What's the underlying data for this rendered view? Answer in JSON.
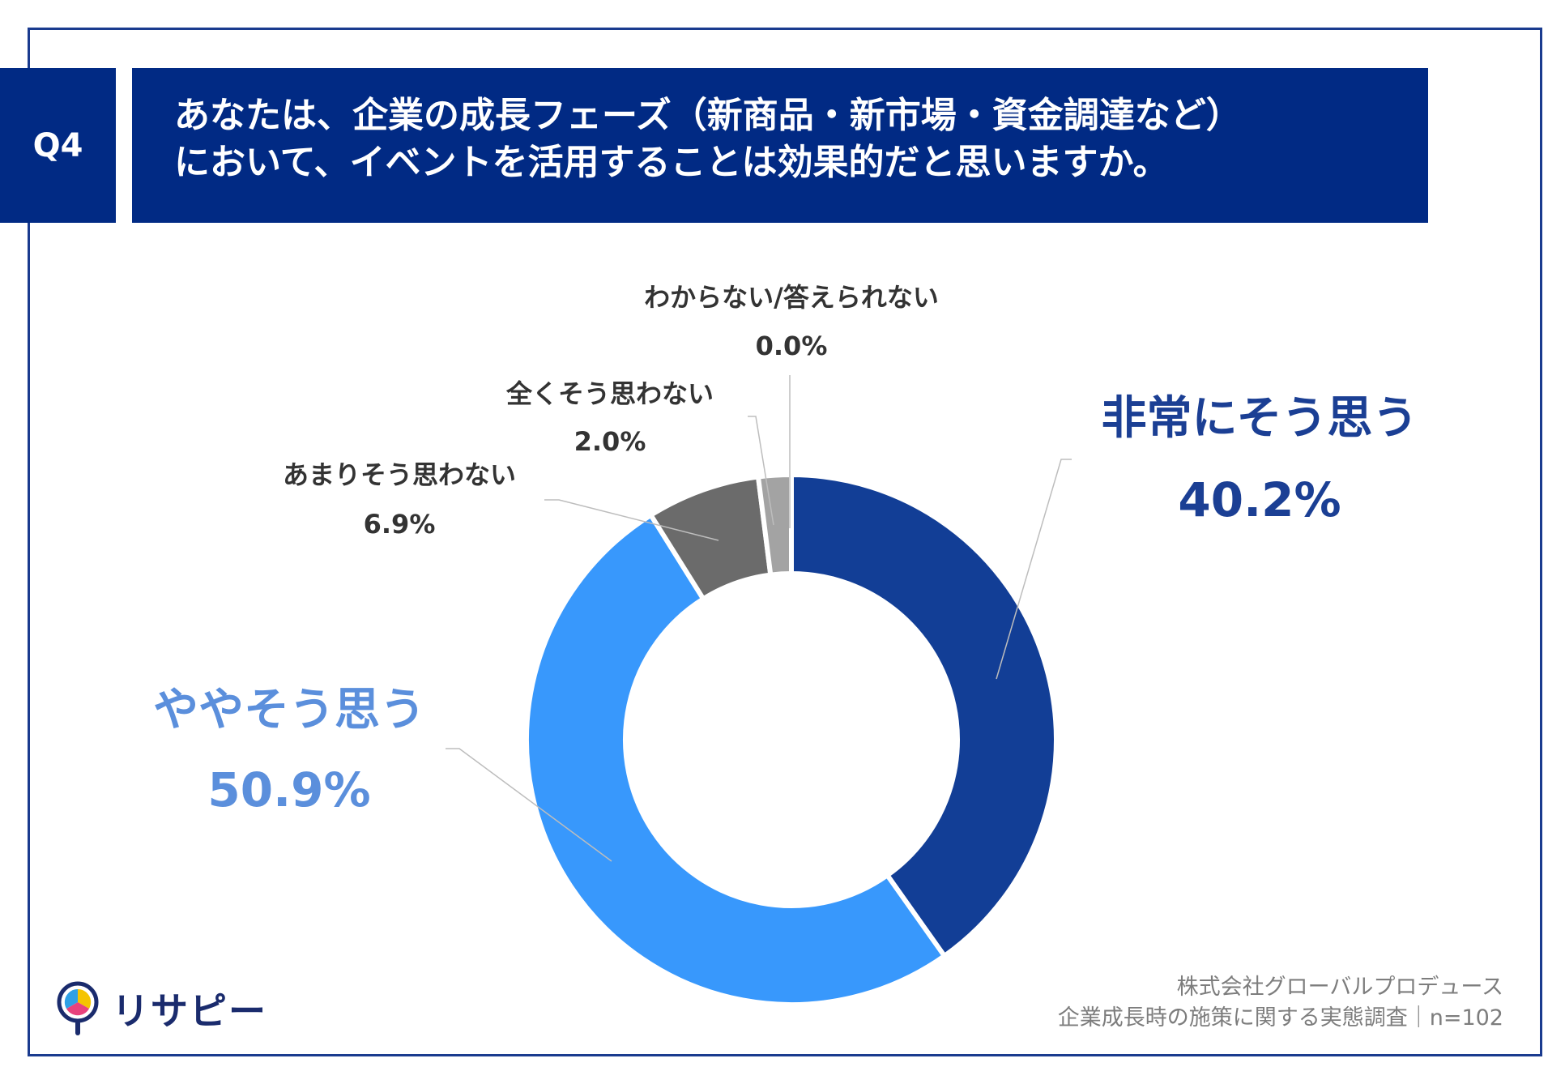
{
  "question": {
    "number": "Q4",
    "line1": "あなたは、企業の成長フェーズ（新商品・新市場・資金調達など）",
    "line2": "において、イベントを活用することは効果的だと思いますか。"
  },
  "chart_data": {
    "type": "pie",
    "style": "donut",
    "slices": [
      {
        "label": "非常にそう思う",
        "value": 40.2,
        "value_label": "40.2%",
        "color": "#123e96",
        "label_color": "#1b3f94"
      },
      {
        "label": "ややそう思う",
        "value": 50.9,
        "value_label": "50.9%",
        "color": "#3898fc",
        "label_color": "#5b8fdc"
      },
      {
        "label": "あまりそう思わない",
        "value": 6.9,
        "value_label": "6.9%",
        "color": "#6b6b6b",
        "label_color": "#333333"
      },
      {
        "label": "全くそう思わない",
        "value": 2.0,
        "value_label": "2.0%",
        "color": "#a3a3a3",
        "label_color": "#333333"
      },
      {
        "label": "わからない/答えられない",
        "value": 0.0,
        "value_label": "0.0%",
        "color": "#d0d0d0",
        "label_color": "#333333"
      }
    ]
  },
  "brand": {
    "name": "リサピー"
  },
  "source": {
    "line1": "株式会社グローバルプロデュース",
    "line2": "企業成長時の施策に関する実態調査｜n=102"
  }
}
